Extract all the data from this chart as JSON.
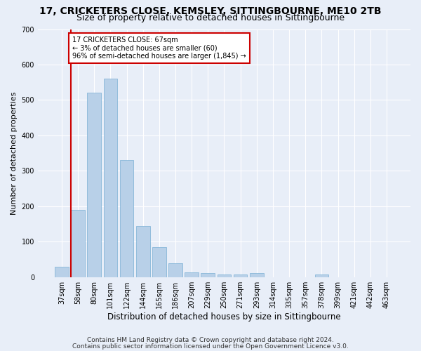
{
  "title1": "17, CRICKETERS CLOSE, KEMSLEY, SITTINGBOURNE, ME10 2TB",
  "title2": "Size of property relative to detached houses in Sittingbourne",
  "xlabel": "Distribution of detached houses by size in Sittingbourne",
  "ylabel": "Number of detached properties",
  "footnote1": "Contains HM Land Registry data © Crown copyright and database right 2024.",
  "footnote2": "Contains public sector information licensed under the Open Government Licence v3.0.",
  "categories": [
    "37sqm",
    "58sqm",
    "80sqm",
    "101sqm",
    "122sqm",
    "144sqm",
    "165sqm",
    "186sqm",
    "207sqm",
    "229sqm",
    "250sqm",
    "271sqm",
    "293sqm",
    "314sqm",
    "335sqm",
    "357sqm",
    "378sqm",
    "399sqm",
    "421sqm",
    "442sqm",
    "463sqm"
  ],
  "values": [
    30,
    190,
    520,
    560,
    330,
    145,
    85,
    40,
    13,
    11,
    8,
    8,
    11,
    0,
    0,
    0,
    7,
    0,
    0,
    0,
    0
  ],
  "bar_color": "#b8d0e8",
  "bar_edge_color": "#7aafd4",
  "vline_x_index": 1,
  "vline_color": "#cc0000",
  "annotation_text": "17 CRICKETERS CLOSE: 67sqm\n← 3% of detached houses are smaller (60)\n96% of semi-detached houses are larger (1,845) →",
  "annotation_box_color": "#ffffff",
  "annotation_box_edge_color": "#cc0000",
  "ylim": [
    0,
    700
  ],
  "yticks": [
    0,
    100,
    200,
    300,
    400,
    500,
    600,
    700
  ],
  "bg_color": "#e8eef8",
  "plot_bg_color": "#e8eef8",
  "grid_color": "#ffffff",
  "title1_fontsize": 10,
  "title2_fontsize": 9,
  "xlabel_fontsize": 8.5,
  "ylabel_fontsize": 8,
  "tick_fontsize": 7,
  "footnote_fontsize": 6.5
}
